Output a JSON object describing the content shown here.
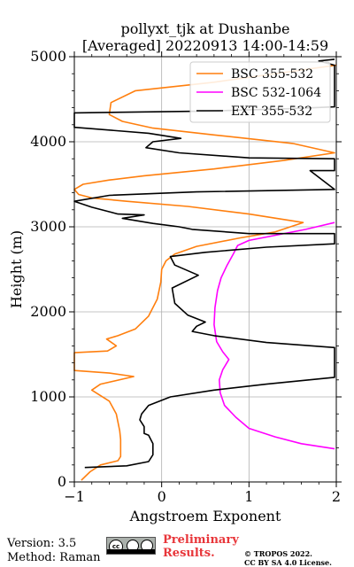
{
  "chart_data": {
    "type": "line",
    "title_line1": "pollyxt_tjk at Dushanbe",
    "title_line2": "[Averaged] 20220913 14:00-14:59",
    "xlabel": "Angstroem Exponent",
    "ylabel": "Height (m)",
    "xlim": [
      -1,
      2
    ],
    "ylim": [
      0,
      5000
    ],
    "xticks": [
      "−1",
      "0",
      "1",
      "2"
    ],
    "yticks": [
      "0",
      "1000",
      "2000",
      "3000",
      "4000",
      "5000"
    ],
    "grid": true,
    "legend_position": "top-right",
    "series": [
      {
        "name": "BSC 355-532",
        "color": "#ff7f0e",
        "points": [
          [
            -0.92,
            20
          ],
          [
            -0.82,
            120
          ],
          [
            -0.7,
            200
          ],
          [
            -0.5,
            250
          ],
          [
            -0.47,
            300
          ],
          [
            -0.47,
            400
          ],
          [
            -0.47,
            500
          ],
          [
            -0.48,
            600
          ],
          [
            -0.52,
            800
          ],
          [
            -0.6,
            950
          ],
          [
            -0.8,
            1080
          ],
          [
            -0.7,
            1150
          ],
          [
            -0.32,
            1240
          ],
          [
            -0.6,
            1280
          ],
          [
            -1.0,
            1310
          ],
          [
            -1.0,
            1520
          ],
          [
            -0.62,
            1540
          ],
          [
            -0.52,
            1600
          ],
          [
            -0.63,
            1680
          ],
          [
            -0.5,
            1720
          ],
          [
            -0.3,
            1800
          ],
          [
            -0.15,
            1950
          ],
          [
            -0.05,
            2150
          ],
          [
            -0.01,
            2350
          ],
          [
            0.0,
            2500
          ],
          [
            0.05,
            2600
          ],
          [
            0.15,
            2680
          ],
          [
            0.4,
            2770
          ],
          [
            0.9,
            2870
          ],
          [
            1.3,
            2940
          ],
          [
            1.62,
            3050
          ],
          [
            1.0,
            3150
          ],
          [
            0.3,
            3240
          ],
          [
            -0.4,
            3300
          ],
          [
            -0.8,
            3340
          ],
          [
            -0.95,
            3380
          ],
          [
            -1.0,
            3440
          ],
          [
            -0.9,
            3500
          ],
          [
            -0.6,
            3550
          ],
          [
            -0.2,
            3600
          ],
          [
            0.6,
            3680
          ],
          [
            1.4,
            3780
          ],
          [
            1.98,
            3870
          ],
          [
            1.5,
            3980
          ],
          [
            0.6,
            4080
          ],
          [
            -0.1,
            4160
          ],
          [
            -0.45,
            4240
          ],
          [
            -0.6,
            4320
          ],
          [
            -0.58,
            4460
          ],
          [
            -0.3,
            4600
          ],
          [
            0.6,
            4700
          ],
          [
            1.3,
            4800
          ],
          [
            2.0,
            4900
          ]
        ]
      },
      {
        "name": "BSC 532-1064",
        "color": "#ff00ff",
        "points": [
          [
            1.98,
            390
          ],
          [
            1.6,
            450
          ],
          [
            1.3,
            530
          ],
          [
            1.0,
            630
          ],
          [
            0.85,
            760
          ],
          [
            0.72,
            900
          ],
          [
            0.67,
            1050
          ],
          [
            0.66,
            1200
          ],
          [
            0.7,
            1320
          ],
          [
            0.77,
            1440
          ],
          [
            0.7,
            1530
          ],
          [
            0.63,
            1650
          ],
          [
            0.6,
            1850
          ],
          [
            0.61,
            2050
          ],
          [
            0.64,
            2250
          ],
          [
            0.68,
            2400
          ],
          [
            0.75,
            2550
          ],
          [
            0.82,
            2680
          ],
          [
            0.87,
            2780
          ],
          [
            1.0,
            2840
          ],
          [
            1.3,
            2900
          ],
          [
            1.65,
            2970
          ],
          [
            1.98,
            3050
          ]
        ]
      },
      {
        "name": "EXT 355-532",
        "color": "#000000",
        "points": [
          [
            -0.88,
            170
          ],
          [
            -0.4,
            190
          ],
          [
            -0.15,
            240
          ],
          [
            -0.1,
            320
          ],
          [
            -0.1,
            450
          ],
          [
            -0.15,
            550
          ],
          [
            -0.2,
            570
          ],
          [
            -0.2,
            650
          ],
          [
            -0.25,
            730
          ],
          [
            -0.23,
            800
          ],
          [
            -0.15,
            900
          ],
          [
            0.1,
            1000
          ],
          [
            0.6,
            1080
          ],
          [
            1.2,
            1150
          ],
          [
            1.98,
            1230
          ],
          [
            1.98,
            1580
          ],
          [
            1.2,
            1640
          ],
          [
            0.6,
            1720
          ],
          [
            0.35,
            1770
          ],
          [
            0.4,
            1830
          ],
          [
            0.5,
            1880
          ],
          [
            0.3,
            1960
          ],
          [
            0.15,
            2100
          ],
          [
            0.12,
            2280
          ],
          [
            0.42,
            2430
          ],
          [
            0.15,
            2550
          ],
          [
            0.1,
            2650
          ],
          [
            0.5,
            2700
          ],
          [
            1.2,
            2760
          ],
          [
            1.98,
            2800
          ],
          [
            1.98,
            2920
          ],
          [
            1.0,
            2920
          ],
          [
            0.35,
            2970
          ],
          [
            0.2,
            3000
          ],
          [
            -0.1,
            3040
          ],
          [
            -0.45,
            3100
          ],
          [
            -0.2,
            3140
          ],
          [
            -0.5,
            3150
          ],
          [
            -0.8,
            3230
          ],
          [
            -1.0,
            3300
          ],
          [
            -0.6,
            3370
          ],
          [
            0.4,
            3410
          ],
          [
            1.98,
            3440
          ],
          [
            1.7,
            3660
          ],
          [
            1.98,
            3660
          ],
          [
            1.98,
            3800
          ],
          [
            1.0,
            3810
          ],
          [
            0.2,
            3870
          ],
          [
            -0.18,
            3930
          ],
          [
            -0.1,
            4000
          ],
          [
            0.22,
            4040
          ],
          [
            -0.15,
            4100
          ],
          [
            -1.0,
            4170
          ],
          [
            -1.0,
            4340
          ],
          [
            0.5,
            4360
          ],
          [
            1.5,
            4390
          ],
          [
            1.98,
            4410
          ],
          [
            1.98,
            4900
          ],
          [
            1.8,
            4950
          ],
          [
            1.98,
            4970
          ]
        ]
      }
    ]
  },
  "footer": {
    "version": "Version: 3.5",
    "method": "Method: Raman",
    "license_badge": "CC BY SA",
    "preliminary_line1": "Preliminary",
    "preliminary_line2": "Results.",
    "copyright_line1": "© TROPOS 2022.",
    "copyright_line2": "CC BY SA 4.0 License."
  }
}
